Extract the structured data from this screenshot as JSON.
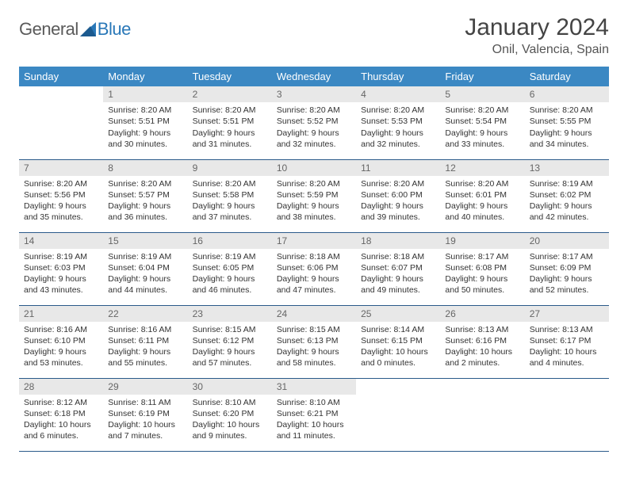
{
  "logo": {
    "general": "General",
    "blue": "Blue"
  },
  "title": "January 2024",
  "location": "Onil, Valencia, Spain",
  "weekdays": [
    "Sunday",
    "Monday",
    "Tuesday",
    "Wednesday",
    "Thursday",
    "Friday",
    "Saturday"
  ],
  "colors": {
    "header_bg": "#3b88c3",
    "header_text": "#ffffff",
    "row_divider": "#2a5a8a",
    "daynum_bg": "#e8e8e8",
    "logo_blue": "#2a78b8"
  },
  "weeks": [
    [
      {
        "n": "",
        "empty": true
      },
      {
        "n": "1",
        "sr": "Sunrise: 8:20 AM",
        "ss": "Sunset: 5:51 PM",
        "d1": "Daylight: 9 hours",
        "d2": "and 30 minutes."
      },
      {
        "n": "2",
        "sr": "Sunrise: 8:20 AM",
        "ss": "Sunset: 5:51 PM",
        "d1": "Daylight: 9 hours",
        "d2": "and 31 minutes."
      },
      {
        "n": "3",
        "sr": "Sunrise: 8:20 AM",
        "ss": "Sunset: 5:52 PM",
        "d1": "Daylight: 9 hours",
        "d2": "and 32 minutes."
      },
      {
        "n": "4",
        "sr": "Sunrise: 8:20 AM",
        "ss": "Sunset: 5:53 PM",
        "d1": "Daylight: 9 hours",
        "d2": "and 32 minutes."
      },
      {
        "n": "5",
        "sr": "Sunrise: 8:20 AM",
        "ss": "Sunset: 5:54 PM",
        "d1": "Daylight: 9 hours",
        "d2": "and 33 minutes."
      },
      {
        "n": "6",
        "sr": "Sunrise: 8:20 AM",
        "ss": "Sunset: 5:55 PM",
        "d1": "Daylight: 9 hours",
        "d2": "and 34 minutes."
      }
    ],
    [
      {
        "n": "7",
        "sr": "Sunrise: 8:20 AM",
        "ss": "Sunset: 5:56 PM",
        "d1": "Daylight: 9 hours",
        "d2": "and 35 minutes."
      },
      {
        "n": "8",
        "sr": "Sunrise: 8:20 AM",
        "ss": "Sunset: 5:57 PM",
        "d1": "Daylight: 9 hours",
        "d2": "and 36 minutes."
      },
      {
        "n": "9",
        "sr": "Sunrise: 8:20 AM",
        "ss": "Sunset: 5:58 PM",
        "d1": "Daylight: 9 hours",
        "d2": "and 37 minutes."
      },
      {
        "n": "10",
        "sr": "Sunrise: 8:20 AM",
        "ss": "Sunset: 5:59 PM",
        "d1": "Daylight: 9 hours",
        "d2": "and 38 minutes."
      },
      {
        "n": "11",
        "sr": "Sunrise: 8:20 AM",
        "ss": "Sunset: 6:00 PM",
        "d1": "Daylight: 9 hours",
        "d2": "and 39 minutes."
      },
      {
        "n": "12",
        "sr": "Sunrise: 8:20 AM",
        "ss": "Sunset: 6:01 PM",
        "d1": "Daylight: 9 hours",
        "d2": "and 40 minutes."
      },
      {
        "n": "13",
        "sr": "Sunrise: 8:19 AM",
        "ss": "Sunset: 6:02 PM",
        "d1": "Daylight: 9 hours",
        "d2": "and 42 minutes."
      }
    ],
    [
      {
        "n": "14",
        "sr": "Sunrise: 8:19 AM",
        "ss": "Sunset: 6:03 PM",
        "d1": "Daylight: 9 hours",
        "d2": "and 43 minutes."
      },
      {
        "n": "15",
        "sr": "Sunrise: 8:19 AM",
        "ss": "Sunset: 6:04 PM",
        "d1": "Daylight: 9 hours",
        "d2": "and 44 minutes."
      },
      {
        "n": "16",
        "sr": "Sunrise: 8:19 AM",
        "ss": "Sunset: 6:05 PM",
        "d1": "Daylight: 9 hours",
        "d2": "and 46 minutes."
      },
      {
        "n": "17",
        "sr": "Sunrise: 8:18 AM",
        "ss": "Sunset: 6:06 PM",
        "d1": "Daylight: 9 hours",
        "d2": "and 47 minutes."
      },
      {
        "n": "18",
        "sr": "Sunrise: 8:18 AM",
        "ss": "Sunset: 6:07 PM",
        "d1": "Daylight: 9 hours",
        "d2": "and 49 minutes."
      },
      {
        "n": "19",
        "sr": "Sunrise: 8:17 AM",
        "ss": "Sunset: 6:08 PM",
        "d1": "Daylight: 9 hours",
        "d2": "and 50 minutes."
      },
      {
        "n": "20",
        "sr": "Sunrise: 8:17 AM",
        "ss": "Sunset: 6:09 PM",
        "d1": "Daylight: 9 hours",
        "d2": "and 52 minutes."
      }
    ],
    [
      {
        "n": "21",
        "sr": "Sunrise: 8:16 AM",
        "ss": "Sunset: 6:10 PM",
        "d1": "Daylight: 9 hours",
        "d2": "and 53 minutes."
      },
      {
        "n": "22",
        "sr": "Sunrise: 8:16 AM",
        "ss": "Sunset: 6:11 PM",
        "d1": "Daylight: 9 hours",
        "d2": "and 55 minutes."
      },
      {
        "n": "23",
        "sr": "Sunrise: 8:15 AM",
        "ss": "Sunset: 6:12 PM",
        "d1": "Daylight: 9 hours",
        "d2": "and 57 minutes."
      },
      {
        "n": "24",
        "sr": "Sunrise: 8:15 AM",
        "ss": "Sunset: 6:13 PM",
        "d1": "Daylight: 9 hours",
        "d2": "and 58 minutes."
      },
      {
        "n": "25",
        "sr": "Sunrise: 8:14 AM",
        "ss": "Sunset: 6:15 PM",
        "d1": "Daylight: 10 hours",
        "d2": "and 0 minutes."
      },
      {
        "n": "26",
        "sr": "Sunrise: 8:13 AM",
        "ss": "Sunset: 6:16 PM",
        "d1": "Daylight: 10 hours",
        "d2": "and 2 minutes."
      },
      {
        "n": "27",
        "sr": "Sunrise: 8:13 AM",
        "ss": "Sunset: 6:17 PM",
        "d1": "Daylight: 10 hours",
        "d2": "and 4 minutes."
      }
    ],
    [
      {
        "n": "28",
        "sr": "Sunrise: 8:12 AM",
        "ss": "Sunset: 6:18 PM",
        "d1": "Daylight: 10 hours",
        "d2": "and 6 minutes."
      },
      {
        "n": "29",
        "sr": "Sunrise: 8:11 AM",
        "ss": "Sunset: 6:19 PM",
        "d1": "Daylight: 10 hours",
        "d2": "and 7 minutes."
      },
      {
        "n": "30",
        "sr": "Sunrise: 8:10 AM",
        "ss": "Sunset: 6:20 PM",
        "d1": "Daylight: 10 hours",
        "d2": "and 9 minutes."
      },
      {
        "n": "31",
        "sr": "Sunrise: 8:10 AM",
        "ss": "Sunset: 6:21 PM",
        "d1": "Daylight: 10 hours",
        "d2": "and 11 minutes."
      },
      {
        "n": "",
        "empty": true
      },
      {
        "n": "",
        "empty": true
      },
      {
        "n": "",
        "empty": true
      }
    ]
  ]
}
